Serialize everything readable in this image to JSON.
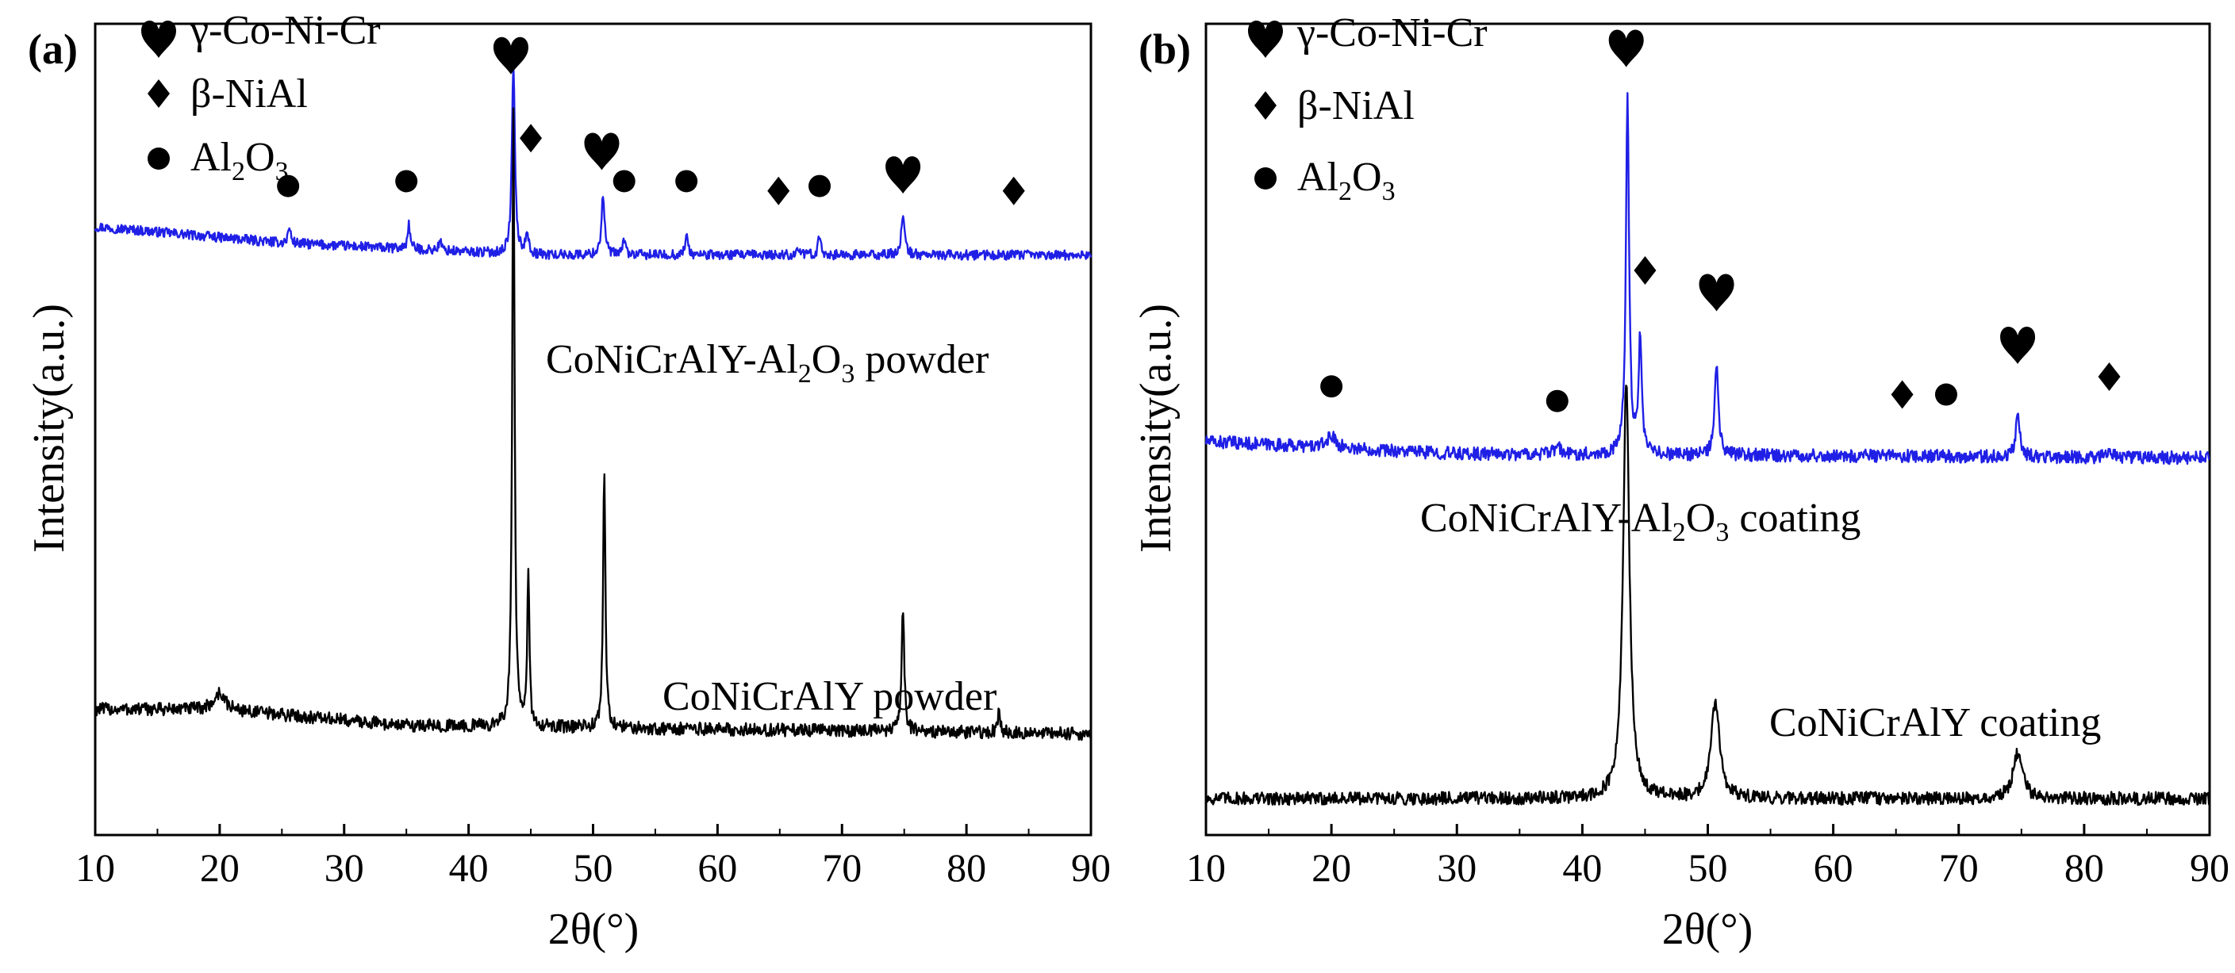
{
  "chart_data": [
    {
      "type": "line",
      "panel": "(a)",
      "xlabel": "2θ(°)",
      "ylabel": "Intensity(a.u.)",
      "xlim": [
        10,
        90
      ],
      "x_ticks": [
        "10",
        "20",
        "30",
        "40",
        "50",
        "60",
        "70",
        "80",
        "90"
      ],
      "legend": [
        {
          "marker": "heart",
          "label": "γ-Co-Ni-Cr"
        },
        {
          "marker": "diamond",
          "label": "β-NiAl"
        },
        {
          "marker": "circle",
          "label_main": "Al",
          "sub1": "2",
          "mid": "O",
          "sub2": "3"
        }
      ],
      "series": [
        {
          "name": "CoNiCrAlY-Al2O3 powder",
          "label_pre": "CoNiCrAlY-Al",
          "label_sub1": "2",
          "label_mid": "O",
          "label_sub2": "3",
          "label_post": " powder",
          "color": "#1f1fe6",
          "baseline": 0.715,
          "noise": 0.006,
          "drift": [
            [
              10,
              0.035
            ],
            [
              25,
              0.015
            ],
            [
              45,
              0.0
            ],
            [
              90,
              0.0
            ]
          ],
          "peaks": [
            {
              "x": 25.6,
              "h": 0.02,
              "w": 0.25
            },
            {
              "x": 35.2,
              "h": 0.03,
              "w": 0.25
            },
            {
              "x": 37.7,
              "h": 0.012,
              "w": 0.25
            },
            {
              "x": 43.6,
              "h": 0.235,
              "w": 0.28
            },
            {
              "x": 44.7,
              "h": 0.03,
              "w": 0.25
            },
            {
              "x": 50.8,
              "h": 0.075,
              "w": 0.3
            },
            {
              "x": 52.5,
              "h": 0.02,
              "w": 0.25
            },
            {
              "x": 57.5,
              "h": 0.025,
              "w": 0.25
            },
            {
              "x": 66.5,
              "h": 0.01,
              "w": 0.25
            },
            {
              "x": 68.2,
              "h": 0.025,
              "w": 0.25
            },
            {
              "x": 74.9,
              "h": 0.045,
              "w": 0.35
            }
          ]
        },
        {
          "name": "CoNiCrAlY powder",
          "label": "CoNiCrAlY powder",
          "color": "#000000",
          "baseline": 0.125,
          "noise": 0.008,
          "drift": [
            [
              10,
              0.03
            ],
            [
              20,
              0.03
            ],
            [
              35,
              0.01
            ],
            [
              90,
              0.0
            ]
          ],
          "peaks": [
            {
              "x": 20.0,
              "h": 0.02,
              "w": 1.0
            },
            {
              "x": 43.6,
              "h": 0.76,
              "w": 0.22
            },
            {
              "x": 44.8,
              "h": 0.19,
              "w": 0.2
            },
            {
              "x": 50.9,
              "h": 0.32,
              "w": 0.22
            },
            {
              "x": 74.9,
              "h": 0.15,
              "w": 0.25
            },
            {
              "x": 82.6,
              "h": 0.025,
              "w": 0.25
            }
          ]
        }
      ],
      "phase_markers": [
        {
          "marker": "circle",
          "x": 25.5,
          "y": 0.8
        },
        {
          "marker": "circle",
          "x": 35.0,
          "y": 0.806
        },
        {
          "marker": "heart",
          "x": 43.4,
          "y": 0.965
        },
        {
          "marker": "diamond",
          "x": 45.0,
          "y": 0.859
        },
        {
          "marker": "heart",
          "x": 50.7,
          "y": 0.847
        },
        {
          "marker": "circle",
          "x": 52.5,
          "y": 0.806
        },
        {
          "marker": "circle",
          "x": 57.5,
          "y": 0.806
        },
        {
          "marker": "diamond",
          "x": 64.9,
          "y": 0.794
        },
        {
          "marker": "circle",
          "x": 68.2,
          "y": 0.8
        },
        {
          "marker": "heart",
          "x": 74.9,
          "y": 0.818
        },
        {
          "marker": "diamond",
          "x": 83.8,
          "y": 0.794
        }
      ]
    },
    {
      "type": "line",
      "panel": "(b)",
      "xlabel": "2θ(°)",
      "ylabel": "Intensity(a.u.)",
      "xlim": [
        10,
        90
      ],
      "x_ticks": [
        "10",
        "20",
        "30",
        "40",
        "50",
        "60",
        "70",
        "80",
        "90"
      ],
      "legend": [
        {
          "marker": "heart",
          "label": "γ-Co-Ni-Cr"
        },
        {
          "marker": "diamond",
          "label": "β-NiAl"
        },
        {
          "marker": "circle",
          "label_main": "Al",
          "sub1": "2",
          "mid": "O",
          "sub2": "3"
        }
      ],
      "series": [
        {
          "name": "CoNiCrAlY-Al2O3 coating",
          "label_pre": "CoNiCrAlY-Al",
          "label_sub1": "2",
          "label_mid": "O",
          "label_sub2": "3",
          "label_post": " coating",
          "color": "#1f1fe6",
          "baseline": 0.465,
          "noise": 0.008,
          "drift": [
            [
              10,
              0.02
            ],
            [
              30,
              0.005
            ],
            [
              90,
              0.0
            ]
          ],
          "peaks": [
            {
              "x": 20.0,
              "h": 0.015,
              "w": 0.8
            },
            {
              "x": 38.0,
              "h": 0.01,
              "w": 0.5
            },
            {
              "x": 43.6,
              "h": 0.445,
              "w": 0.3
            },
            {
              "x": 44.6,
              "h": 0.14,
              "w": 0.3
            },
            {
              "x": 50.7,
              "h": 0.11,
              "w": 0.35
            },
            {
              "x": 74.7,
              "h": 0.05,
              "w": 0.4
            },
            {
              "x": 82.0,
              "h": 0.012,
              "w": 0.4
            }
          ]
        },
        {
          "name": "CoNiCrAlY coating",
          "label": "CoNiCrAlY coating",
          "color": "#000000",
          "baseline": 0.045,
          "noise": 0.008,
          "drift": [
            [
              10,
              0.0
            ],
            [
              90,
              0.0
            ]
          ],
          "peaks": [
            {
              "x": 43.5,
              "h": 0.515,
              "w": 0.6
            },
            {
              "x": 50.6,
              "h": 0.12,
              "w": 0.8
            },
            {
              "x": 74.7,
              "h": 0.055,
              "w": 0.9
            }
          ]
        }
      ],
      "phase_markers": [
        {
          "marker": "circle",
          "x": 20.0,
          "y": 0.553
        },
        {
          "marker": "circle",
          "x": 38.0,
          "y": 0.535
        },
        {
          "marker": "heart",
          "x": 43.5,
          "y": 0.974
        },
        {
          "marker": "diamond",
          "x": 45.0,
          "y": 0.696
        },
        {
          "marker": "heart",
          "x": 50.7,
          "y": 0.673
        },
        {
          "marker": "diamond",
          "x": 65.5,
          "y": 0.543
        },
        {
          "marker": "circle",
          "x": 69.0,
          "y": 0.543
        },
        {
          "marker": "heart",
          "x": 74.7,
          "y": 0.608
        },
        {
          "marker": "diamond",
          "x": 82.0,
          "y": 0.565
        }
      ]
    }
  ]
}
